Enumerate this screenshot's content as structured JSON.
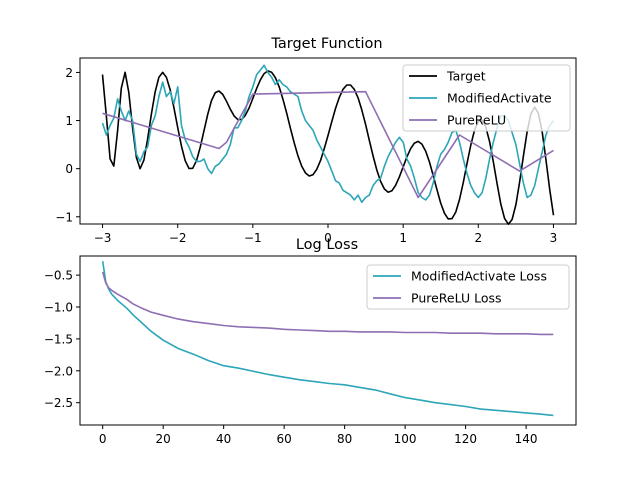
{
  "chart_data": [
    {
      "type": "line",
      "title": "Target Function",
      "xlabel": "",
      "ylabel": "",
      "xlim": [
        -3.3,
        3.3
      ],
      "ylim": [
        -1.15,
        2.3
      ],
      "xticks": [
        -3,
        -2,
        -1,
        0,
        1,
        2,
        3
      ],
      "yticks": [
        -1,
        0,
        1,
        2
      ],
      "legend_position": "top-right",
      "grid": false,
      "series": [
        {
          "name": "Target",
          "color": "#000000",
          "x": [
            -3.0,
            -2.95,
            -2.9,
            -2.85,
            -2.8,
            -2.75,
            -2.7,
            -2.65,
            -2.6,
            -2.55,
            -2.5,
            -2.45,
            -2.4,
            -2.35,
            -2.3,
            -2.25,
            -2.2,
            -2.15,
            -2.1,
            -2.05,
            -2.0,
            -1.95,
            -1.9,
            -1.85,
            -1.8,
            -1.75,
            -1.7,
            -1.65,
            -1.6,
            -1.55,
            -1.5,
            -1.45,
            -1.4,
            -1.35,
            -1.3,
            -1.25,
            -1.2,
            -1.15,
            -1.1,
            -1.05,
            -1.0,
            -0.95,
            -0.9,
            -0.85,
            -0.8,
            -0.75,
            -0.7,
            -0.65,
            -0.6,
            -0.55,
            -0.5,
            -0.45,
            -0.4,
            -0.35,
            -0.3,
            -0.25,
            -0.2,
            -0.15,
            -0.1,
            -0.05,
            0.0,
            0.05,
            0.1,
            0.15,
            0.2,
            0.25,
            0.3,
            0.35,
            0.4,
            0.45,
            0.5,
            0.55,
            0.6,
            0.65,
            0.7,
            0.75,
            0.8,
            0.85,
            0.9,
            0.95,
            1.0,
            1.05,
            1.1,
            1.15,
            1.2,
            1.25,
            1.3,
            1.35,
            1.4,
            1.45,
            1.5,
            1.55,
            1.6,
            1.65,
            1.7,
            1.75,
            1.8,
            1.85,
            1.9,
            1.95,
            2.0,
            2.05,
            2.1,
            2.15,
            2.2,
            2.25,
            2.3,
            2.35,
            2.4,
            2.45,
            2.5,
            2.55,
            2.6,
            2.65,
            2.7,
            2.75,
            2.8,
            2.85,
            2.9,
            2.95,
            3.0
          ],
          "values": [
            1.954,
            1.104,
            0.204,
            0.053,
            0.79,
            1.673,
            2.003,
            1.585,
            0.846,
            0.233,
            0.0,
            0.178,
            0.614,
            1.137,
            1.597,
            1.9,
            2.0,
            1.899,
            1.638,
            1.27,
            0.855,
            0.465,
            0.165,
            0.004,
            0.007,
            0.165,
            0.444,
            0.789,
            1.134,
            1.414,
            1.58,
            1.615,
            1.542,
            1.4,
            1.235,
            1.096,
            1.019,
            1.021,
            1.107,
            1.261,
            1.459,
            1.665,
            1.846,
            1.975,
            2.031,
            2.004,
            1.891,
            1.7,
            1.446,
            1.152,
            0.841,
            0.538,
            0.269,
            0.054,
            -0.091,
            -0.152,
            -0.126,
            -0.016,
            0.168,
            0.412,
            0.69,
            0.978,
            1.25,
            1.481,
            1.649,
            1.738,
            1.738,
            1.647,
            1.47,
            1.221,
            0.919,
            0.59,
            0.264,
            -0.028,
            -0.265,
            -0.423,
            -0.489,
            -0.459,
            -0.345,
            -0.169,
            0.038,
            0.244,
            0.418,
            0.532,
            0.567,
            0.511,
            0.363,
            0.136,
            -0.143,
            -0.44,
            -0.715,
            -0.928,
            -1.044,
            -1.038,
            -0.9,
            -0.64,
            -0.288,
            0.107,
            0.489,
            0.798,
            0.983,
            1.008,
            0.862,
            0.56,
            0.146,
            -0.313,
            -0.735,
            -1.037,
            -1.155,
            -1.056,
            -0.748,
            -0.28,
            0.264,
            0.775,
            1.141,
            1.279,
            1.148,
            0.762,
            0.194,
            -0.431,
            -0.969
          ],
          "note_y_values_in_data_units": true
        },
        {
          "name": "ModifiedActivate",
          "color": "#2ca6b8",
          "x": [
            -3.0,
            -2.95,
            -2.9,
            -2.85,
            -2.8,
            -2.75,
            -2.7,
            -2.65,
            -2.6,
            -2.55,
            -2.5,
            -2.45,
            -2.4,
            -2.35,
            -2.3,
            -2.25,
            -2.2,
            -2.15,
            -2.1,
            -2.05,
            -2.0,
            -1.95,
            -1.9,
            -1.85,
            -1.8,
            -1.75,
            -1.7,
            -1.65,
            -1.6,
            -1.55,
            -1.5,
            -1.45,
            -1.4,
            -1.35,
            -1.3,
            -1.25,
            -1.2,
            -1.15,
            -1.1,
            -1.05,
            -1.0,
            -0.95,
            -0.9,
            -0.85,
            -0.8,
            -0.75,
            -0.7,
            -0.65,
            -0.6,
            -0.55,
            -0.5,
            -0.45,
            -0.4,
            -0.35,
            -0.3,
            -0.25,
            -0.2,
            -0.15,
            -0.1,
            -0.05,
            0.0,
            0.05,
            0.1,
            0.15,
            0.2,
            0.25,
            0.3,
            0.35,
            0.4,
            0.45,
            0.5,
            0.55,
            0.6,
            0.65,
            0.7,
            0.75,
            0.8,
            0.85,
            0.9,
            0.95,
            1.0,
            1.05,
            1.1,
            1.15,
            1.2,
            1.25,
            1.3,
            1.35,
            1.4,
            1.45,
            1.5,
            1.55,
            1.6,
            1.65,
            1.7,
            1.75,
            1.8,
            1.85,
            1.9,
            1.95,
            2.0,
            2.05,
            2.1,
            2.15,
            2.2,
            2.25,
            2.3,
            2.35,
            2.4,
            2.45,
            2.5,
            2.55,
            2.6,
            2.65,
            2.7,
            2.75,
            2.8,
            2.85,
            2.9,
            2.95,
            3.0
          ],
          "values": [
            0.95,
            0.7,
            0.9,
            1.05,
            1.45,
            1.2,
            1.0,
            1.2,
            1.0,
            0.3,
            0.15,
            0.35,
            0.45,
            0.9,
            1.1,
            1.5,
            1.8,
            1.5,
            1.6,
            1.35,
            1.7,
            0.9,
            0.6,
            0.45,
            0.25,
            0.15,
            0.15,
            0.2,
            0.0,
            -0.1,
            0.05,
            0.1,
            0.2,
            0.3,
            0.5,
            0.85,
            0.85,
            1.0,
            1.2,
            1.5,
            1.7,
            1.95,
            2.05,
            2.15,
            2.0,
            1.9,
            1.75,
            1.85,
            1.75,
            1.7,
            1.6,
            1.55,
            1.5,
            1.2,
            1.0,
            0.9,
            0.8,
            0.6,
            0.45,
            0.3,
            0.15,
            -0.05,
            -0.25,
            -0.3,
            -0.45,
            -0.5,
            -0.55,
            -0.65,
            -0.55,
            -0.7,
            -0.6,
            -0.55,
            -0.35,
            -0.25,
            -0.2,
            0.05,
            0.25,
            0.4,
            0.55,
            0.65,
            0.55,
            0.2,
            0.05,
            -0.2,
            -0.5,
            -0.6,
            -0.65,
            -0.55,
            -0.3,
            0.05,
            0.3,
            0.4,
            0.55,
            0.75,
            0.8,
            0.55,
            0.2,
            -0.1,
            -0.35,
            -0.5,
            -0.6,
            -0.5,
            -0.2,
            0.2,
            0.55,
            0.85,
            1.1,
            1.1,
            1.0,
            0.75,
            0.5,
            0.1,
            -0.3,
            -0.6,
            -0.55,
            -0.35,
            0.0,
            0.35,
            0.7,
            0.9,
            1.0
          ]
        },
        {
          "name": "PureReLU",
          "color": "#8f6fb4",
          "x": [
            -3.0,
            -1.45,
            -1.35,
            -1.0,
            0.5,
            1.2,
            1.75,
            2.55,
            3.0
          ],
          "values": [
            1.15,
            0.42,
            0.55,
            1.55,
            1.6,
            -0.6,
            0.7,
            -0.05,
            0.38
          ]
        }
      ]
    },
    {
      "type": "line",
      "title": "Log Loss",
      "xlabel": "",
      "ylabel": "",
      "xlim": [
        -7.5,
        156.5
      ],
      "ylim": [
        -2.85,
        -0.2
      ],
      "xticks": [
        0,
        20,
        40,
        60,
        80,
        100,
        120,
        140
      ],
      "yticks": [
        -2.5,
        -2.0,
        -1.5,
        -1.0,
        -0.5
      ],
      "legend_position": "top-right",
      "grid": false,
      "series": [
        {
          "name": "ModifiedActivate Loss",
          "color": "#2ca6b8",
          "x": [
            0,
            1,
            2,
            3,
            5,
            8,
            10,
            13,
            16,
            20,
            25,
            30,
            35,
            40,
            45,
            50,
            55,
            60,
            65,
            70,
            75,
            80,
            85,
            90,
            95,
            100,
            105,
            110,
            115,
            120,
            125,
            130,
            135,
            140,
            145,
            149
          ],
          "values": [
            -0.28,
            -0.6,
            -0.72,
            -0.8,
            -0.9,
            -1.02,
            -1.12,
            -1.25,
            -1.38,
            -1.52,
            -1.65,
            -1.74,
            -1.84,
            -1.92,
            -1.96,
            -2.01,
            -2.06,
            -2.1,
            -2.14,
            -2.17,
            -2.2,
            -2.22,
            -2.26,
            -2.3,
            -2.36,
            -2.42,
            -2.46,
            -2.5,
            -2.53,
            -2.56,
            -2.6,
            -2.62,
            -2.64,
            -2.66,
            -2.68,
            -2.7
          ]
        },
        {
          "name": "PureReLU Loss",
          "color": "#8f6fb4",
          "x": [
            0,
            1,
            2,
            3,
            5,
            8,
            10,
            13,
            16,
            20,
            25,
            30,
            35,
            40,
            45,
            50,
            55,
            60,
            65,
            70,
            75,
            80,
            85,
            90,
            95,
            100,
            105,
            110,
            115,
            120,
            125,
            130,
            135,
            140,
            145,
            149
          ],
          "values": [
            -0.45,
            -0.62,
            -0.7,
            -0.74,
            -0.8,
            -0.88,
            -0.95,
            -1.02,
            -1.08,
            -1.13,
            -1.19,
            -1.23,
            -1.26,
            -1.29,
            -1.31,
            -1.32,
            -1.33,
            -1.35,
            -1.36,
            -1.37,
            -1.38,
            -1.38,
            -1.39,
            -1.39,
            -1.39,
            -1.4,
            -1.4,
            -1.4,
            -1.41,
            -1.41,
            -1.41,
            -1.42,
            -1.42,
            -1.42,
            -1.43,
            -1.43
          ]
        }
      ]
    }
  ]
}
